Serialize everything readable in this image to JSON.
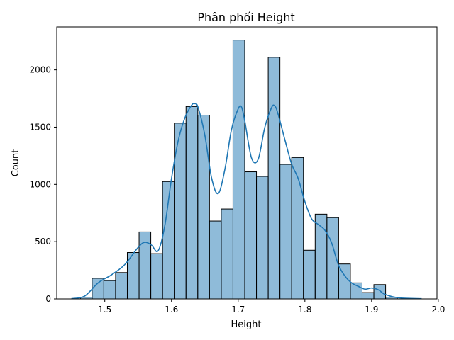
{
  "chart_data": {
    "type": "bar",
    "title": "Phân phối Height",
    "xlabel": "Height",
    "ylabel": "Count",
    "xlim": [
      1.428,
      1.998
    ],
    "ylim": [
      0,
      2375
    ],
    "xticks": [
      1.5,
      1.6,
      1.7,
      1.8,
      1.9,
      2.0
    ],
    "xtick_labels": [
      "1.5",
      "1.6",
      "1.7",
      "1.8",
      "1.9",
      "2.0"
    ],
    "yticks": [
      0,
      500,
      1000,
      1500,
      2000
    ],
    "ytick_labels": [
      "0",
      "500",
      "1000",
      "1500",
      "2000"
    ],
    "bins": [
      [
        1.4634,
        1.481,
        15
      ],
      [
        1.481,
        1.4986,
        180
      ],
      [
        1.4986,
        1.5162,
        160
      ],
      [
        1.5162,
        1.5338,
        230
      ],
      [
        1.5338,
        1.5514,
        405
      ],
      [
        1.5514,
        1.569,
        585
      ],
      [
        1.569,
        1.5866,
        395
      ],
      [
        1.5866,
        1.6042,
        1025
      ],
      [
        1.6042,
        1.6218,
        1535
      ],
      [
        1.6218,
        1.6394,
        1680
      ],
      [
        1.6394,
        1.657,
        1605
      ],
      [
        1.657,
        1.6746,
        680
      ],
      [
        1.6746,
        1.6922,
        785
      ],
      [
        1.6922,
        1.7098,
        2260
      ],
      [
        1.7098,
        1.7274,
        1110
      ],
      [
        1.7274,
        1.745,
        1070
      ],
      [
        1.745,
        1.7626,
        2110
      ],
      [
        1.7626,
        1.7802,
        1175
      ],
      [
        1.7802,
        1.7978,
        1235
      ],
      [
        1.7978,
        1.8154,
        425
      ],
      [
        1.8154,
        1.833,
        740
      ],
      [
        1.833,
        1.8506,
        710
      ],
      [
        1.8506,
        1.8682,
        305
      ],
      [
        1.8682,
        1.8858,
        140
      ],
      [
        1.8858,
        1.9034,
        55
      ],
      [
        1.9034,
        1.921,
        125
      ],
      [
        1.921,
        1.9386,
        15
      ]
    ],
    "kde": {
      "x": [
        1.45,
        1.47,
        1.49,
        1.51,
        1.53,
        1.55,
        1.56,
        1.57,
        1.58,
        1.59,
        1.6,
        1.61,
        1.62,
        1.63,
        1.635,
        1.64,
        1.65,
        1.66,
        1.67,
        1.68,
        1.69,
        1.7,
        1.705,
        1.71,
        1.72,
        1.73,
        1.74,
        1.75,
        1.755,
        1.76,
        1.77,
        1.78,
        1.79,
        1.8,
        1.81,
        1.82,
        1.83,
        1.84,
        1.85,
        1.86,
        1.87,
        1.88,
        1.89,
        1.9,
        1.91,
        1.92,
        1.94,
        1.975
      ],
      "y": [
        2,
        25,
        140,
        210,
        300,
        450,
        495,
        470,
        420,
        640,
        1050,
        1380,
        1580,
        1690,
        1705,
        1670,
        1430,
        1060,
        920,
        1130,
        1480,
        1660,
        1675,
        1550,
        1230,
        1220,
        1500,
        1670,
        1685,
        1610,
        1390,
        1180,
        1050,
        850,
        700,
        650,
        600,
        490,
        300,
        200,
        140,
        110,
        85,
        95,
        80,
        40,
        10,
        2
      ]
    },
    "bar_color": "#1f77b4",
    "bar_alpha": 0.5,
    "edge_color": "#000000",
    "line_color": "#1f77b4",
    "grid": false
  }
}
